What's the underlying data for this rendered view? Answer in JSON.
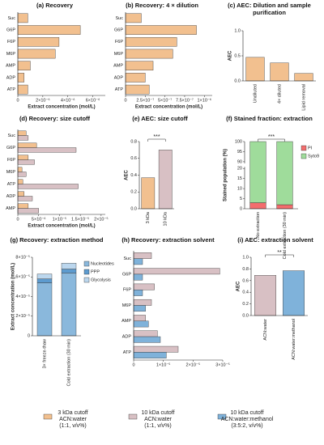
{
  "chart_data": [
    {
      "type": "hbar",
      "title": "(a) Recovery",
      "categories": [
        "Suc",
        "G6P",
        "F6P",
        "M6P",
        "AMP",
        "ADP",
        "ATP"
      ],
      "values": [
        8e-07,
        5e-06,
        3.3e-06,
        3e-06,
        1e-06,
        5e-07,
        8e-07
      ],
      "color": "#f2c08f",
      "xlim": [
        0,
        7e-06
      ],
      "xticks": [
        0,
        {
          "value": 2e-06,
          "label": "2×10⁻⁶"
        },
        {
          "value": 4e-06,
          "label": "4×10⁻⁶"
        },
        {
          "value": 6e-06,
          "label": "6×10⁻⁶"
        }
      ],
      "xlabel": "Extract concentration (mol/L)"
    },
    {
      "type": "hbar",
      "title": "(b) Recovery:  4 × dilution",
      "categories": [
        "Suc",
        "G6P",
        "F6P",
        "M6P",
        "AMP",
        "ADP",
        "ATP"
      ],
      "values": [
        2e-07,
        9e-07,
        6.5e-07,
        6e-07,
        3.5e-07,
        2.5e-07,
        3e-07
      ],
      "color": "#f2c08f",
      "xlim": [
        0,
        1.1e-06
      ],
      "xticks": [
        0,
        {
          "value": 2.5e-07,
          "label": "2.5×10⁻⁷"
        },
        {
          "value": 5e-07,
          "label": "5×10⁻⁷"
        },
        {
          "value": 7.5e-07,
          "label": "7.5×10⁻⁷"
        },
        {
          "value": 1e-06,
          "label": "1×10⁻⁶"
        }
      ],
      "xlabel": "Extract concentration (mol/L)"
    },
    {
      "type": "bar",
      "title": "(c) AEC: Dilution and sample purification",
      "categories": [
        "Undiluted",
        "4× diluted",
        "Lipid removal"
      ],
      "values": [
        0.47,
        0.36,
        0.15
      ],
      "colors": [
        "#f2c08f",
        "#f2c08f",
        "#f2c08f"
      ],
      "ylim": [
        0,
        1.0
      ],
      "yticks": [
        {
          "value": 0,
          "label": "0.0"
        },
        0.5,
        {
          "value": 1.0,
          "label": "1.0"
        }
      ],
      "ylabel": "AEC"
    },
    {
      "type": "hbar",
      "title": "(d) Recovery: size cutoff",
      "categories": [
        "Suc",
        "G6P",
        "F6P",
        "M6P",
        "ATP",
        "ADP",
        "AMP"
      ],
      "series": [
        {
          "color": "#f2c08f",
          "values": [
            2e-06,
            4.5e-06,
            2.5e-06,
            1e-06,
            1.2e-06,
            1.5e-06,
            2.5e-06
          ]
        },
        {
          "color": "#d8c0c4",
          "values": [
            2.5e-06,
            1.4e-05,
            4e-06,
            2e-06,
            1.45e-05,
            3.5e-06,
            5e-06
          ]
        }
      ],
      "xlim": [
        0,
        2.1e-05
      ],
      "xticks": [
        0,
        {
          "value": 5e-06,
          "label": "5×10⁻⁶"
        },
        {
          "value": 1e-05,
          "label": "1×10⁻⁵"
        },
        {
          "value": 1.5e-05,
          "label": "1.5×10⁻⁵"
        },
        {
          "value": 2e-05,
          "label": "2×10⁻⁵"
        }
      ],
      "xlabel": "Extract concentration (mol/L)"
    },
    {
      "type": "bar",
      "title": "(e) AEC: size cutoff",
      "categories": [
        "3 kDa",
        "10 kDa"
      ],
      "values": [
        0.37,
        0.7
      ],
      "colors": [
        "#f2c08f",
        "#d8c0c4"
      ],
      "ylim": [
        0,
        0.8
      ],
      "yticks": [
        {
          "value": 0,
          "label": "0.0"
        },
        0.2,
        0.4,
        0.6,
        0.8
      ],
      "ylabel": "AEC",
      "annotation": "***"
    },
    {
      "type": "stacked",
      "title": "(f) Stained fraction: extraction",
      "categories": [
        "No extraction",
        "Cold extraction (30 min)"
      ],
      "series": [
        {
          "name": "PI",
          "color": "#f36d6d",
          "values": [
            3,
            2
          ]
        },
        {
          "name": "Syto9",
          "color": "#9fdc9b",
          "values": [
            97,
            98
          ]
        }
      ],
      "ylim": [
        0,
        100
      ],
      "ybreak": [
        20,
        90
      ],
      "yticks": [
        0,
        5,
        10,
        15,
        20,
        90,
        95,
        100
      ],
      "ylabel": "Stained population (%)",
      "legend": "right",
      "annotation": "***"
    },
    {
      "type": "stacked",
      "title": "(g) Recovery: extraction method",
      "categories": [
        "3× freeze-thaw",
        "Cold extraction (30 min)"
      ],
      "series": [
        {
          "name": "Nucleotides",
          "color": "#8ab8dc",
          "values": [
            5.4e-05,
            6.4e-05
          ]
        },
        {
          "name": "PPP",
          "color": "#5d9bcf",
          "values": [
            4e-06,
            4e-06
          ]
        },
        {
          "name": "Glycolysis",
          "color": "#bcd7ee",
          "values": [
            5e-06,
            6e-06
          ]
        }
      ],
      "ylim": [
        0,
        8e-05
      ],
      "yticks": [
        0,
        {
          "value": 2e-05,
          "label": "2×10⁻⁵"
        },
        {
          "value": 4e-05,
          "label": "4×10⁻⁵"
        },
        {
          "value": 6e-05,
          "label": "6×10⁻⁵"
        },
        {
          "value": 8e-05,
          "label": "8×10⁻⁵"
        }
      ],
      "ylabel": "Extract concentration (mol/L)",
      "legend": "right"
    },
    {
      "type": "hbar",
      "title": "(h) Recovery: extraction solvent",
      "categories": [
        "Suc",
        "G6P",
        "F6P",
        "M6P",
        "AMP",
        "ADP",
        "ATP"
      ],
      "series": [
        {
          "color": "#d8c0c4",
          "values": [
            6e-06,
            2.9e-05,
            7e-06,
            6e-06,
            4e-06,
            8e-06,
            1.5e-05
          ]
        },
        {
          "color": "#7fb2da",
          "values": [
            3e-06,
            3e-06,
            3e-06,
            4e-06,
            5e-06,
            9e-06,
            1.1e-05
          ]
        }
      ],
      "xlim": [
        0,
        3e-05
      ],
      "xticks": [
        0,
        {
          "value": 1e-05,
          "label": "1×10⁻⁵"
        },
        {
          "value": 2e-05,
          "label": "2×10⁻⁵"
        },
        {
          "value": 3e-05,
          "label": "3×10⁻⁵"
        }
      ]
    },
    {
      "type": "bar",
      "title": "(i) AEC: extraction solvent",
      "categories": [
        "ACN:water",
        "ACN:water:methanol"
      ],
      "values": [
        0.69,
        0.77
      ],
      "colors": [
        "#d8c0c4",
        "#7fb2da"
      ],
      "ylim": [
        0,
        1.0
      ],
      "yticks": [
        {
          "value": 0,
          "label": "0.0"
        },
        0.2,
        0.4,
        0.6,
        0.8,
        {
          "value": 1.0,
          "label": "1.0"
        }
      ],
      "ylabel": "AEC",
      "annotation": "**"
    }
  ],
  "legend": {
    "items": [
      {
        "color": "#f2c08f",
        "lines": [
          "3 kDa cutoff",
          "ACN:water",
          "(1:1, v/v%)"
        ]
      },
      {
        "color": "#d8c0c4",
        "lines": [
          "10 kDa cutoff",
          "ACN:water",
          "(1:1, v/v%)"
        ]
      },
      {
        "color": "#7fb2da",
        "lines": [
          "10 kDa cutoff",
          "ACN:water:methanol",
          "(3:5:2, v/v%)"
        ]
      }
    ]
  }
}
